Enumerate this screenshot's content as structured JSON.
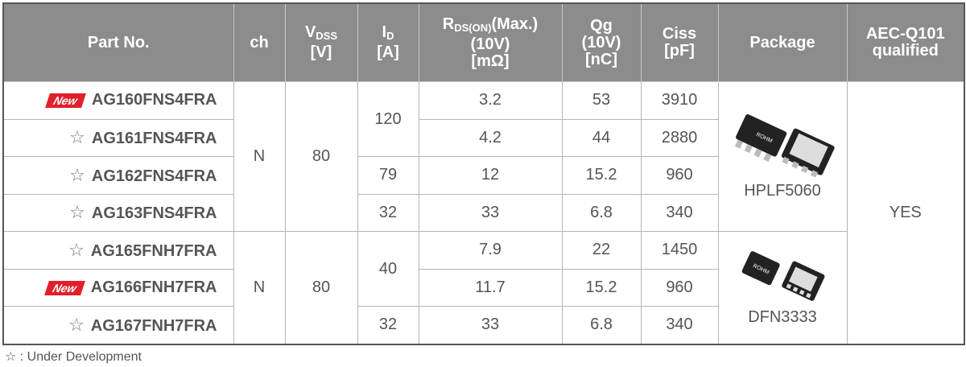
{
  "header": {
    "part_no": "Part No.",
    "ch": "ch",
    "vdss": {
      "symbol": "V",
      "sub": "DSS",
      "unit": "[V]"
    },
    "id": {
      "symbol": "I",
      "sub": "D",
      "unit": "[A]"
    },
    "rds": {
      "symbol": "R",
      "sub": "DS(ON)",
      "suffix": "(Max.)",
      "cond": "(10V)",
      "unit": "[mΩ]"
    },
    "qg": {
      "name": "Qg",
      "cond": "(10V)",
      "unit": "[nC]"
    },
    "ciss": {
      "name": "Ciss",
      "unit": "[pF]"
    },
    "package": "Package",
    "aec": [
      "AEC-Q101",
      "qualified"
    ]
  },
  "groups": [
    {
      "ch": "N",
      "vdss": 80,
      "package": "HPLF5060",
      "chip_marking": "ROHM",
      "id_blocks": [
        {
          "id": 120,
          "rows": [
            {
              "badge": "New",
              "part": "AG160FNS4FRA",
              "rds": 3.2,
              "qg": 53,
              "ciss": 3910
            },
            {
              "badge": "☆",
              "part": "AG161FNS4FRA",
              "rds": 4.2,
              "qg": 44,
              "ciss": 2880
            }
          ]
        },
        {
          "id": 79,
          "rows": [
            {
              "badge": "☆",
              "part": "AG162FNS4FRA",
              "rds": 12,
              "qg": 15.2,
              "ciss": 960
            }
          ]
        },
        {
          "id": 32,
          "rows": [
            {
              "badge": "☆",
              "part": "AG163FNS4FRA",
              "rds": 33,
              "qg": 6.8,
              "ciss": 340
            }
          ]
        }
      ]
    },
    {
      "ch": "N",
      "vdss": 80,
      "package": "DFN3333",
      "chip_marking": "ROHM",
      "id_blocks": [
        {
          "id": 40,
          "rows": [
            {
              "badge": "☆",
              "part": "AG165FNH7FRA",
              "rds": 7.9,
              "qg": 22,
              "ciss": 1450
            },
            {
              "badge": "New",
              "part": "AG166FNH7FRA",
              "rds": 11.7,
              "qg": 15.2,
              "ciss": 960
            }
          ]
        },
        {
          "id": 32,
          "rows": [
            {
              "badge": "☆",
              "part": "AG167FNH7FRA",
              "rds": 33,
              "qg": 6.8,
              "ciss": 340
            }
          ]
        }
      ]
    }
  ],
  "aec": "YES",
  "footnote": "☆ : Under Development"
}
